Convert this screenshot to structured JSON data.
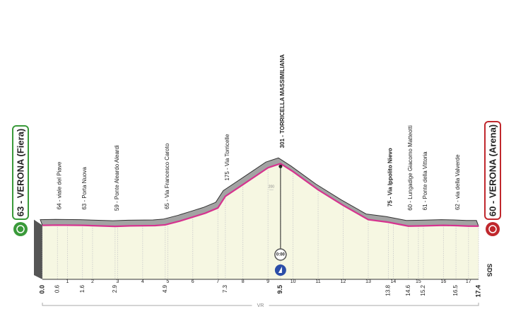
{
  "chart_data": {
    "type": "area",
    "start_label": "63 - VERONA (Fiera)",
    "finish_label": "60 - VERONA (Arena)",
    "x": [
      0,
      0.6,
      1.6,
      2.9,
      3.5,
      4.5,
      4.9,
      5.5,
      6,
      6.5,
      7,
      7.3,
      8,
      9,
      9.5,
      10,
      11,
      12,
      13,
      13.8,
      14.6,
      15.2,
      16,
      16.5,
      17,
      17.4
    ],
    "values": [
      63,
      64,
      63,
      59,
      61,
      62,
      65,
      80,
      95,
      110,
      130,
      175,
      220,
      285,
      301,
      270,
      200,
      140,
      85,
      75,
      60,
      61,
      63,
      62,
      60,
      60
    ],
    "color": "#d6338f",
    "xlim": [
      0,
      17.4
    ],
    "ylim": [
      -145,
      340
    ],
    "xticks": [
      {
        "value": 0,
        "label": "0.0"
      },
      0.6,
      1,
      1.6,
      2,
      2.9,
      3,
      4,
      4.9,
      5,
      6,
      7,
      7.3,
      8,
      9,
      9.5,
      10,
      11,
      12,
      13,
      13.8,
      14,
      14.6,
      15,
      15.2,
      16,
      16.5,
      17,
      17.4
    ],
    "yticks": [
      200
    ],
    "annotations": [
      {
        "x": 0.6,
        "label": "64 - viale del Piave"
      },
      {
        "x": 1.6,
        "label": "63 - Porta Nuova"
      },
      {
        "x": 2.9,
        "label": "59 - Ponte Aleardo Aleardi"
      },
      {
        "x": 4.9,
        "label": "65 - Via Francesco Caroto"
      },
      {
        "x": 7.3,
        "label": "175 - Via Torricelle"
      },
      {
        "x": 9.5,
        "label": "301 - TORRICELLA MASSIMILIANA"
      },
      {
        "x": 13.8,
        "label": "75 - Via Ippolito Nievo"
      },
      {
        "x": 14.6,
        "label": "60 - Lungadige Giacomo Matteotti"
      },
      {
        "x": 15.2,
        "label": "61 - Ponte della Vittoria"
      },
      {
        "x": 16.5,
        "label": "62 - via della Valverde"
      }
    ],
    "timing": "0:00",
    "province": "VR",
    "credit": "SDS"
  }
}
